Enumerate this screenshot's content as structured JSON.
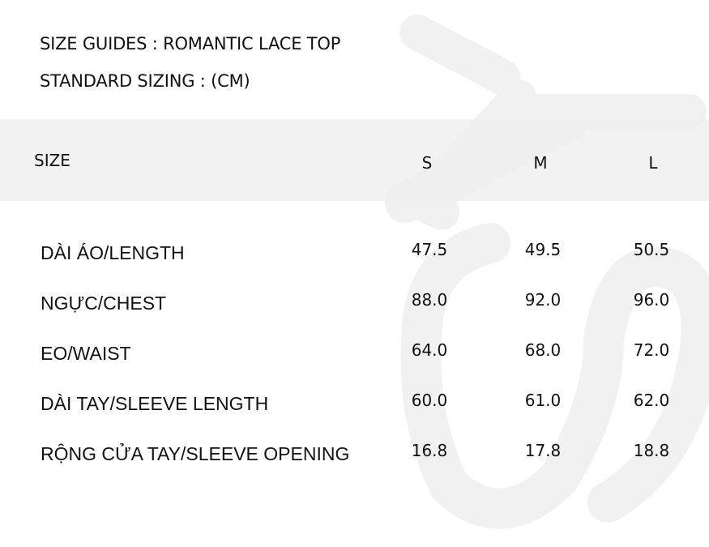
{
  "title": "SIZE GUIDES : ROMANTIC LACE TOP",
  "subtitle": "STANDARD SIZING : (CM)",
  "watermark_color": "#f0f0f0",
  "header_band_color": "#f4f4f4",
  "table": {
    "header": {
      "label": "SIZE",
      "sizes": [
        "S",
        "M",
        "L"
      ]
    },
    "rows": [
      {
        "label": "DÀI ÁO/LENGTH",
        "values": [
          "47.5",
          "49.5",
          "50.5"
        ]
      },
      {
        "label": "NGỰC/CHEST",
        "values": [
          "88.0",
          "92.0",
          "96.0"
        ]
      },
      {
        "label": "EO/WAIST",
        "values": [
          "64.0",
          "68.0",
          "72.0"
        ]
      },
      {
        "label": "DÀI TAY/SLEEVE LENGTH",
        "values": [
          "60.0",
          "61.0",
          "62.0"
        ]
      },
      {
        "label": "RỘNG CỬA TAY/SLEEVE OPENING",
        "values": [
          "16.8",
          "17.8",
          "18.8"
        ]
      }
    ]
  }
}
